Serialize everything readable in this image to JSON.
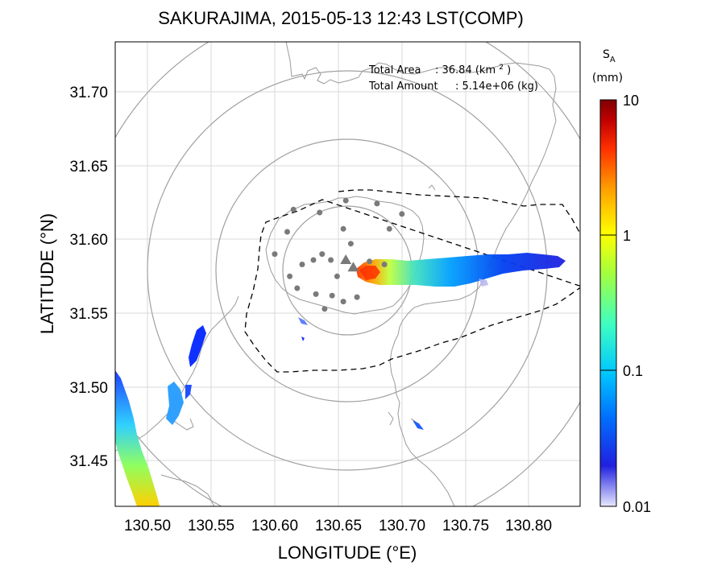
{
  "title": "SAKURAJIMA, 2015-05-13 12:43 LST(COMP)",
  "axes": {
    "xlabel": "LONGITUDE (°E)",
    "ylabel": "LATITUDE (°N)",
    "xticks": [
      "130.50",
      "130.55",
      "130.60",
      "130.65",
      "130.70",
      "130.75",
      "130.80"
    ],
    "yticks": [
      "31.70",
      "31.65",
      "31.60",
      "31.55",
      "31.50",
      "31.45"
    ],
    "xrange": [
      130.472,
      130.845
    ],
    "yrange": [
      31.42,
      31.733
    ]
  },
  "info": {
    "area_label": "Total Area",
    "area_value": ": 36.84 (km",
    "area_unit_sup": "2",
    "area_close": ")",
    "amount_label": "Total Amount",
    "amount_value": ": 5.14e+06 (kg)"
  },
  "colorbar": {
    "label_main": "S",
    "label_sub": "A",
    "unit": "(mm)",
    "ticks": [
      "10",
      "1",
      "0.1",
      "0.01"
    ],
    "scale": "log",
    "range": [
      0.01,
      10
    ],
    "colors": [
      "#e8e8ff",
      "#2020e0",
      "#0070ff",
      "#00c8ff",
      "#40ffc0",
      "#a0ff40",
      "#ffff00",
      "#ffa000",
      "#ff3000",
      "#c00000",
      "#800000"
    ]
  },
  "chart_data": {
    "type": "scatter",
    "description_series": [
      {
        "name": "",
        "kind": "stations",
        "points": [
          [
            130.615,
            31.62
          ],
          [
            130.636,
            31.618
          ],
          [
            130.657,
            31.626
          ],
          [
            130.682,
            31.624
          ],
          [
            130.61,
            31.605
          ],
          [
            130.638,
            31.59
          ],
          [
            130.655,
            31.607
          ],
          [
            130.692,
            31.607
          ],
          [
            130.702,
            31.617
          ],
          [
            130.6,
            31.59
          ],
          [
            130.612,
            31.575
          ],
          [
            130.622,
            31.583
          ],
          [
            130.631,
            31.586
          ],
          [
            130.645,
            31.586
          ],
          [
            130.65,
            31.575
          ],
          [
            130.661,
            31.597
          ],
          [
            130.676,
            31.585
          ],
          [
            130.688,
            31.583
          ],
          [
            130.618,
            31.567
          ],
          [
            130.633,
            31.563
          ],
          [
            130.646,
            31.562
          ],
          [
            130.655,
            31.558
          ],
          [
            130.666,
            31.561
          ],
          [
            130.64,
            31.553
          ]
        ]
      },
      {
        "name": "",
        "kind": "vents",
        "points": [
          [
            130.657,
            31.586
          ],
          [
            130.663,
            31.581
          ]
        ]
      }
    ],
    "range_rings_center": [
      130.66,
      31.58
    ],
    "grid": true
  }
}
